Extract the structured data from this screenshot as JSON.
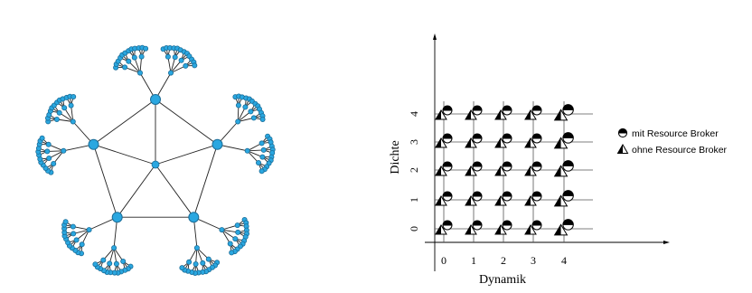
{
  "network": {
    "center_nodes": 1,
    "ring_nodes": 5,
    "branching": "tree"
  },
  "grid_chart": {
    "x_label": "Dynamik",
    "y_label": "Dichte",
    "x_ticks": [
      "0",
      "1",
      "2",
      "3",
      "4"
    ],
    "y_ticks": [
      "0",
      "1",
      "2",
      "3",
      "4"
    ],
    "legend": [
      {
        "symbol": "circle-half",
        "label": "mit Resource Broker"
      },
      {
        "symbol": "triangle-half",
        "label": "ohne Resource Broker"
      }
    ]
  },
  "colors": {
    "node": "#2aa7e0",
    "line": "#222222"
  }
}
